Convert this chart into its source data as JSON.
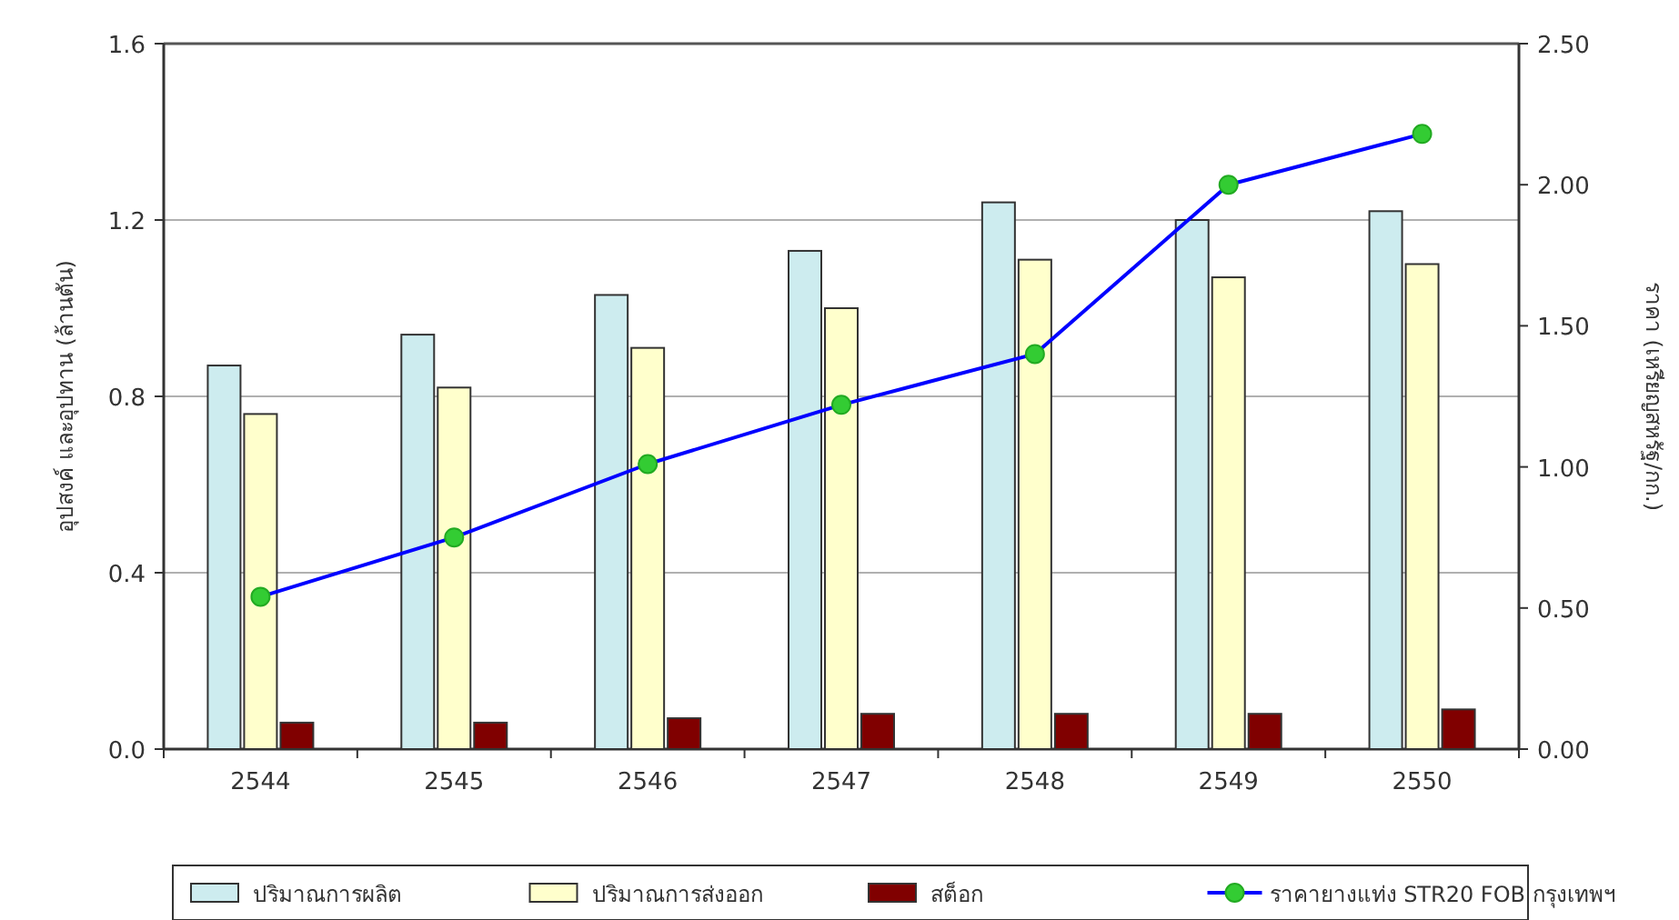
{
  "chart_data": {
    "type": "bar",
    "categories": [
      "2544",
      "2545",
      "2546",
      "2547",
      "2548",
      "2549",
      "2550"
    ],
    "ylabel": "อุปสงค์ และอุปทาน (ล้านตัน)",
    "y2label": "ราคา (เหรียญสหรัฐ/กก.)",
    "ylim": [
      0,
      1.6
    ],
    "yticks": [
      {
        "value": 0,
        "label": "0.0"
      },
      {
        "value": 0.4,
        "label": "0.4"
      },
      {
        "value": 0.8,
        "label": "0.8"
      },
      {
        "value": 1.2,
        "label": "1.2"
      },
      {
        "value": 1.6,
        "label": "1.6"
      }
    ],
    "y2lim": [
      0,
      2.5
    ],
    "y2ticks": [
      {
        "value": 0,
        "label": "0.00"
      },
      {
        "value": 0.5,
        "label": "0.50"
      },
      {
        "value": 1,
        "label": "1.00"
      },
      {
        "value": 1.5,
        "label": "1.50"
      },
      {
        "value": 2,
        "label": "2.00"
      },
      {
        "value": 2.5,
        "label": "2.50"
      }
    ],
    "grid": "y",
    "legend": "bottom",
    "series": [
      {
        "name": "ปริมาณการผลิต",
        "color": "#cdecef",
        "values": [
          0.87,
          0.94,
          1.03,
          1.13,
          1.24,
          1.2,
          1.22
        ]
      },
      {
        "name": "ปริมาณการส่งออก",
        "color": "#ffffcc",
        "values": [
          0.76,
          0.82,
          0.91,
          1.0,
          1.11,
          1.07,
          1.1
        ]
      },
      {
        "name": "สต็อก",
        "color": "#800000",
        "values": [
          0.06,
          0.06,
          0.07,
          0.08,
          0.08,
          0.08,
          0.09
        ]
      },
      {
        "name": "ราคายางแท่ง STR20 FOB กรุงเทพฯ",
        "type": "line",
        "axis": "y2",
        "color": "#0000ff",
        "marker": "circle",
        "values": [
          0.54,
          0.75,
          1.01,
          1.22,
          1.4,
          2.0,
          2.18
        ]
      }
    ]
  }
}
